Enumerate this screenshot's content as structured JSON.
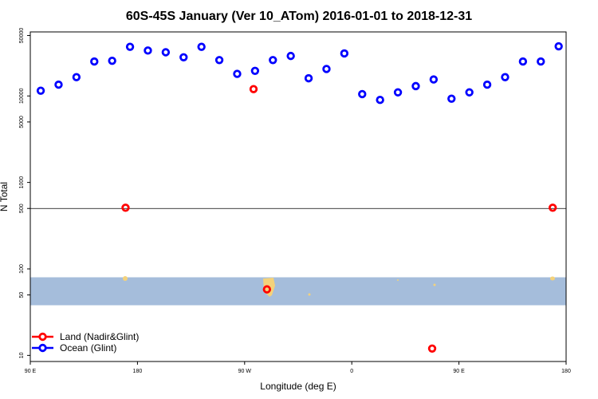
{
  "chart_data": {
    "type": "scatter",
    "title": "60S-45S January (Ver 10_ATom)   2016-01-01 to 2018-12-31",
    "xlabel": "Longitude (deg E)",
    "ylabel": "N Total",
    "y_scale": "log",
    "ylim": [
      8.5,
      55000
    ],
    "xlim": [
      90,
      450
    ],
    "x_ticks": [
      {
        "value": 90,
        "label": "90 E"
      },
      {
        "value": 162,
        "label": "180"
      },
      {
        "value": 234,
        "label": "90 W"
      },
      {
        "value": 306,
        "label": "0"
      },
      {
        "value": 378,
        "label": "90 E"
      },
      {
        "value": 450,
        "label": "180"
      }
    ],
    "y_ticks": [
      {
        "value": 10,
        "label": "10"
      },
      {
        "value": 50,
        "label": "50"
      },
      {
        "value": 100,
        "label": "100"
      },
      {
        "value": 500,
        "label": "500"
      },
      {
        "value": 1000,
        "label": "1000"
      },
      {
        "value": 5000,
        "label": "5000"
      },
      {
        "value": 10000,
        "label": "10000"
      },
      {
        "value": 50000,
        "label": "50000"
      }
    ],
    "reference_line": 500,
    "map_band": {
      "y_min": 38,
      "y_max": 80,
      "color": "#a5bddb"
    },
    "land_color": "#f4d27a",
    "legend_position": "bottom-left",
    "series": [
      {
        "name": "Land (Nadir&Glint)",
        "color": "#ff0000",
        "x": [
          154,
          240,
          249,
          360,
          441
        ],
        "y": [
          510,
          12000,
          58,
          12,
          510
        ]
      },
      {
        "name": "Ocean (Glint)",
        "color": "#0000ff",
        "x": [
          97,
          109,
          121,
          133,
          145,
          157,
          169,
          181,
          193,
          205,
          217,
          229,
          241,
          253,
          265,
          277,
          289,
          301,
          313,
          325,
          337,
          349,
          361,
          373,
          385,
          397,
          409,
          421,
          433,
          445
        ],
        "y": [
          11500,
          13500,
          16500,
          25000,
          25500,
          37000,
          33500,
          32000,
          28000,
          37000,
          26000,
          18000,
          19500,
          26000,
          29000,
          16000,
          20500,
          31000,
          10500,
          9000,
          11000,
          13000,
          15500,
          9300,
          11000,
          13500,
          16500,
          25000,
          25000,
          37500
        ]
      }
    ]
  }
}
